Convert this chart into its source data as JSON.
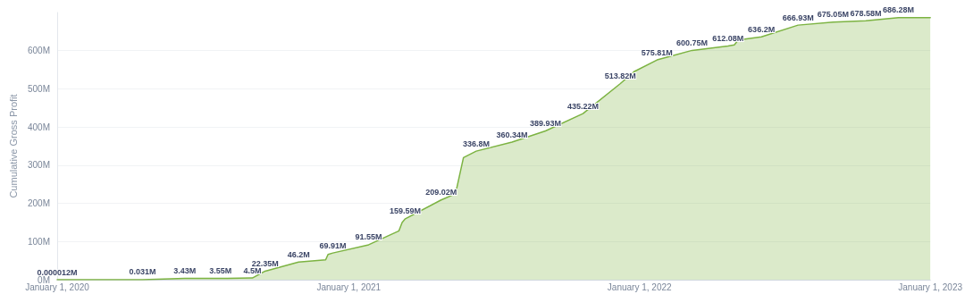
{
  "chart_data": {
    "type": "area",
    "ylabel": "Cumulative Gross Profit",
    "x": [
      "2020-01-01",
      "2020-04-17",
      "2020-06-09",
      "2020-07-24",
      "2020-09-02",
      "2020-09-18",
      "2020-10-30",
      "2020-12-03",
      "2020-12-06",
      "2020-12-12",
      "2021-01-26",
      "2021-03-05",
      "2021-03-09",
      "2021-03-13",
      "2021-04-27",
      "2021-05-15",
      "2021-05-25",
      "2021-06-10",
      "2021-07-25",
      "2021-09-05",
      "2021-10-22",
      "2021-12-08",
      "2021-12-25",
      "2022-01-23",
      "2022-03-08",
      "2022-04-22",
      "2022-04-30",
      "2022-05-05",
      "2022-06-03",
      "2022-07-19",
      "2022-09-01",
      "2022-10-12",
      "2022-11-22",
      "2023-01-01"
    ],
    "series": [
      {
        "color": "#7cb342",
        "values": [
          1.2e-05,
          0.031,
          3.43,
          3.55,
          4.5,
          22.35,
          46.2,
          52,
          66,
          69.91,
          91.55,
          128,
          150,
          159.59,
          209.02,
          225,
          320,
          336.8,
          360.34,
          389.93,
          435.22,
          513.82,
          545,
          575.81,
          600.75,
          612.08,
          615,
          628,
          636.2,
          666.93,
          675.05,
          678.58,
          686.28,
          686.28
        ],
        "value_labels": [
          "0.000012M",
          "0.031M",
          "3.43M",
          "3.55M",
          "4.5M",
          "22.35M",
          "46.2M",
          null,
          null,
          "69.91M",
          "91.55M",
          null,
          null,
          "159.59M",
          "209.02M",
          null,
          null,
          "336.8M",
          "360.34M",
          "389.93M",
          "435.22M",
          "513.82M",
          null,
          "575.81M",
          "600.75M",
          "612.08M",
          null,
          null,
          "636.2M",
          "666.93M",
          "675.05M",
          "678.58M",
          "686.28M",
          null
        ]
      }
    ],
    "xlim": [
      "2020-01-01",
      "2023-01-01"
    ],
    "xticks": [
      {
        "value": "2020-01-01",
        "label": "January 1, 2020"
      },
      {
        "value": "2021-01-01",
        "label": "January 1, 2021"
      },
      {
        "value": "2022-01-01",
        "label": "January 1, 2022"
      },
      {
        "value": "2023-01-01",
        "label": "January 1, 2023"
      }
    ],
    "ylim": [
      0,
      700
    ],
    "yticks": [
      {
        "value": 0,
        "label": "0M"
      },
      {
        "value": 100,
        "label": "100M"
      },
      {
        "value": 200,
        "label": "200M"
      },
      {
        "value": 300,
        "label": "300M"
      },
      {
        "value": 400,
        "label": "400M"
      },
      {
        "value": 500,
        "label": "500M"
      },
      {
        "value": 600,
        "label": "600M"
      }
    ],
    "grid": "y",
    "marker": "none",
    "line_style": "solid"
  }
}
